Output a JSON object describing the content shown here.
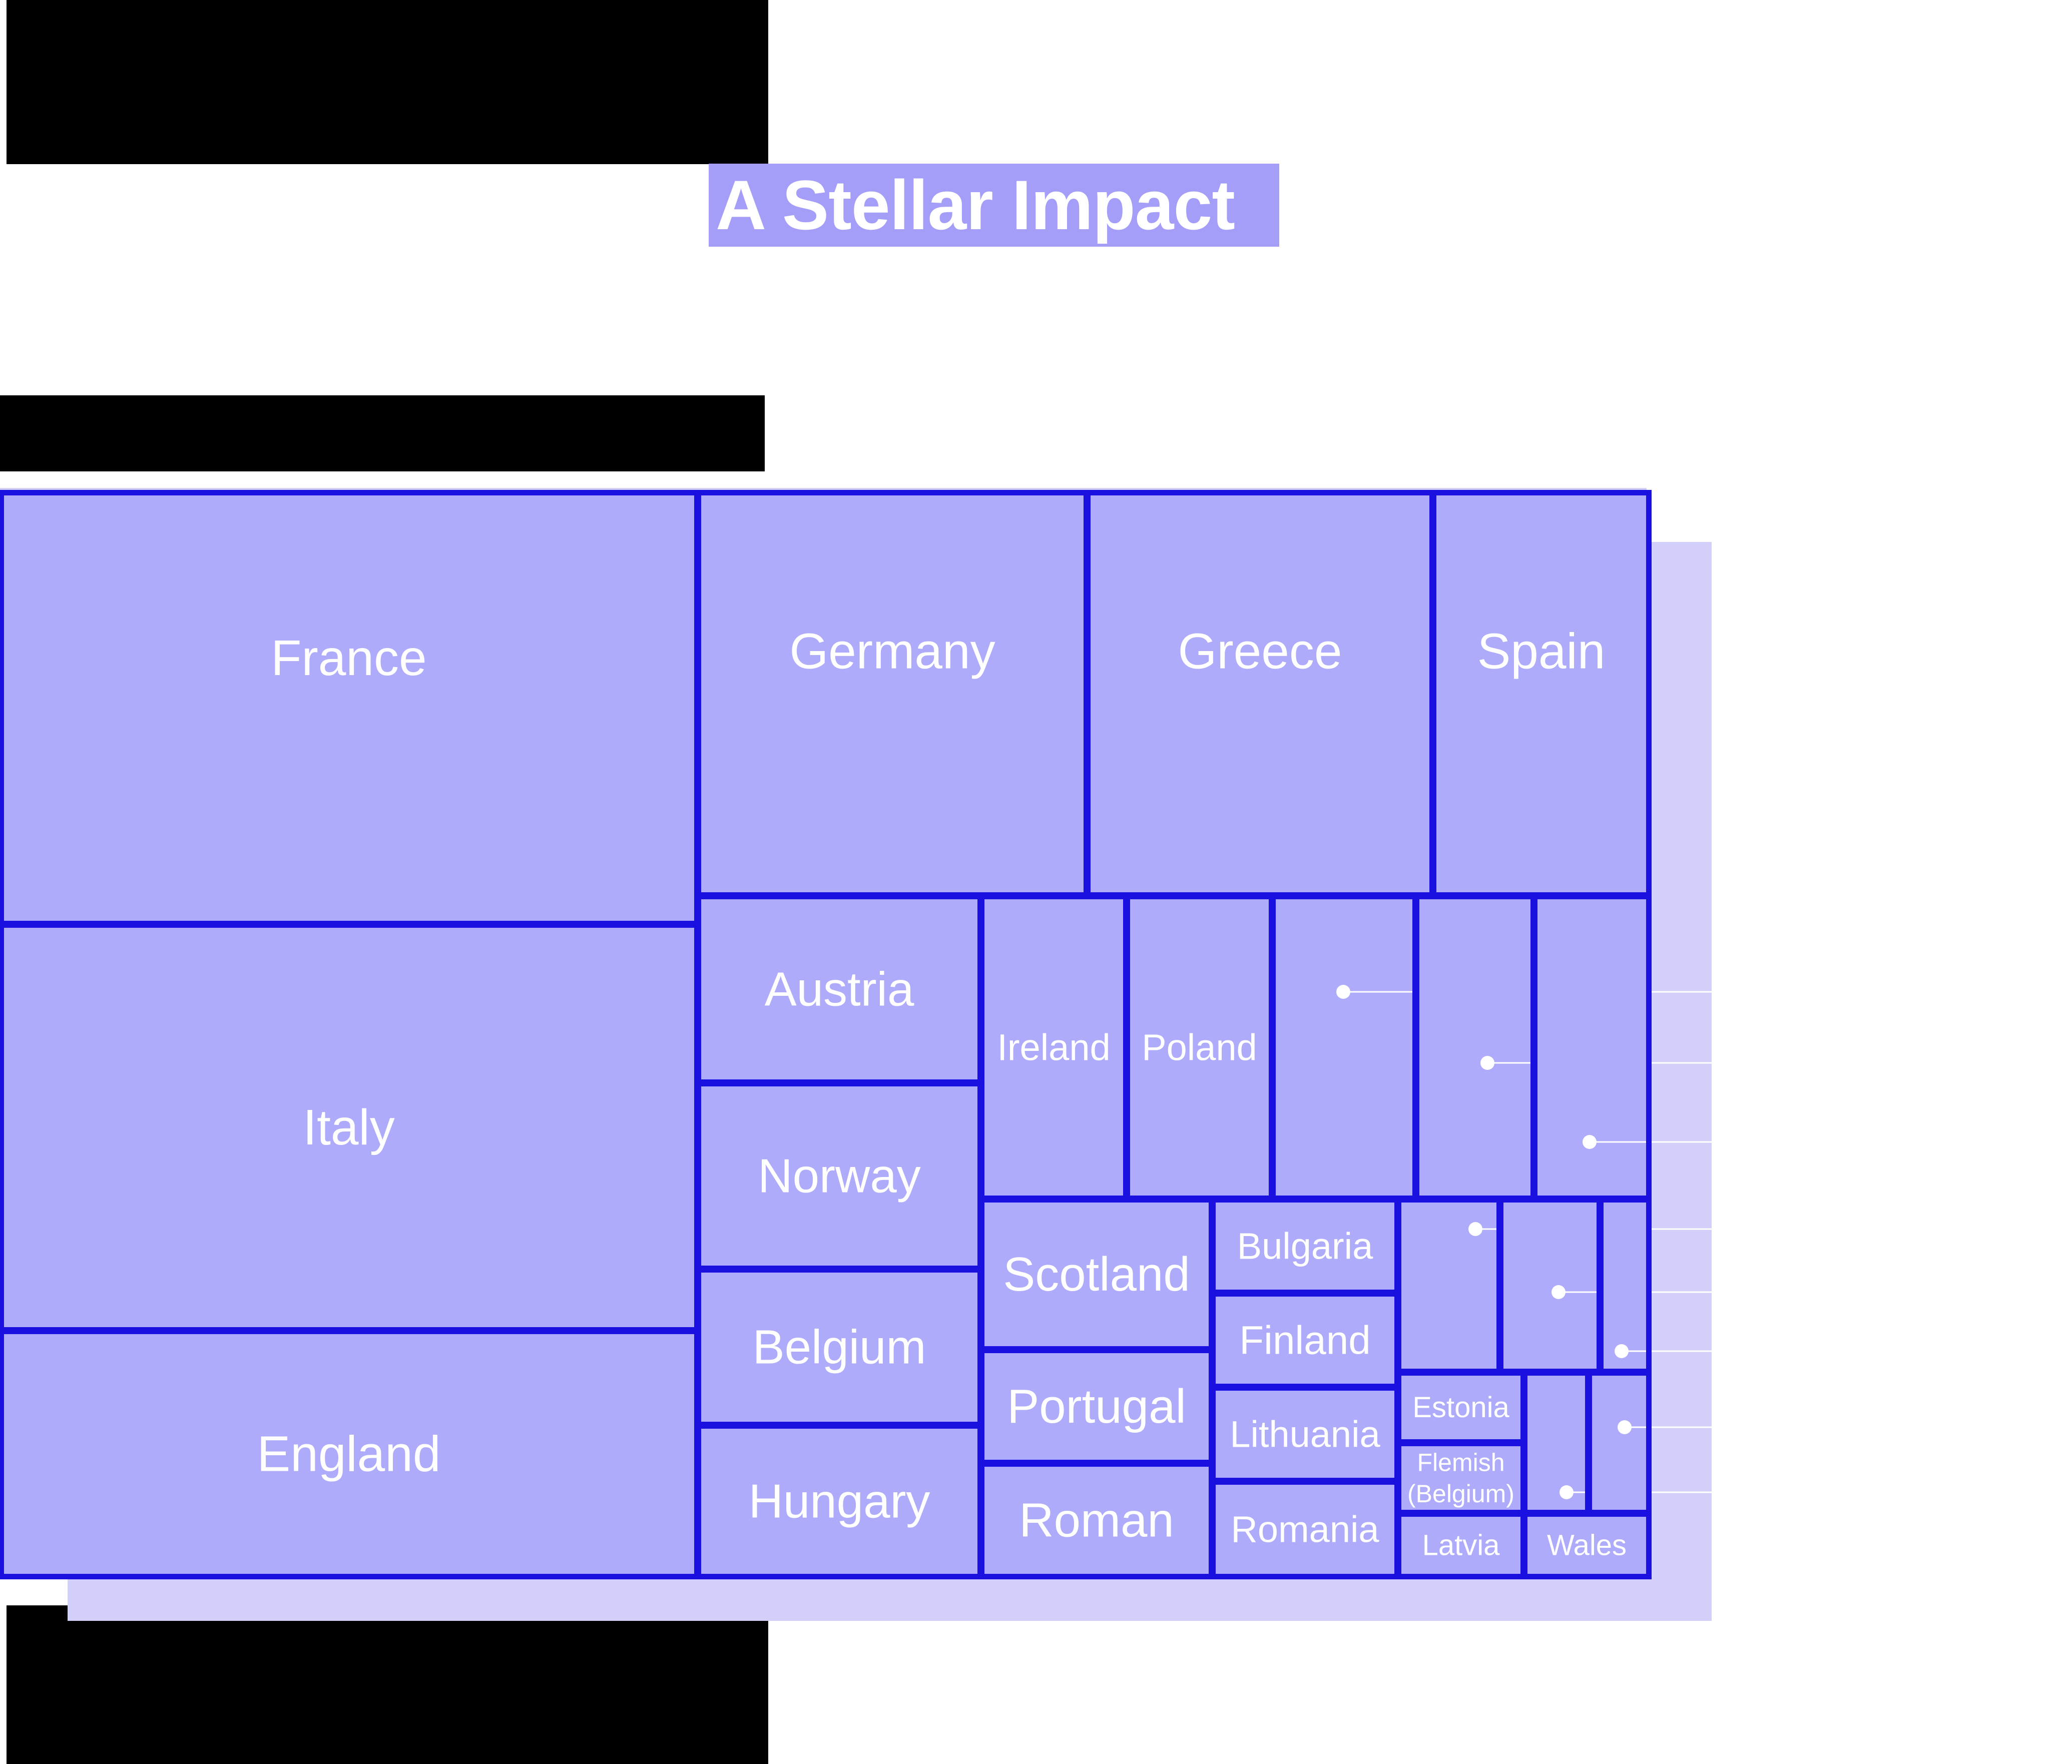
{
  "title": "A Stellar Impact",
  "colors": {
    "tile_fill": "#afabfb",
    "frame_fill": "#d2d0fb",
    "border": "#1a10e0",
    "title_bg": "#a49ef9",
    "text": "#ffffff",
    "redaction": "#000000"
  },
  "chart_data": {
    "type": "treemap",
    "items": [
      {
        "label": "France"
      },
      {
        "label": "Italy"
      },
      {
        "label": "England"
      },
      {
        "label": "Germany"
      },
      {
        "label": "Greece"
      },
      {
        "label": "Spain"
      },
      {
        "label": "Austria"
      },
      {
        "label": "Norway"
      },
      {
        "label": "Belgium"
      },
      {
        "label": "Hungary"
      },
      {
        "label": "Ireland"
      },
      {
        "label": "Poland"
      },
      {
        "label": "Scotland"
      },
      {
        "label": "Portugal"
      },
      {
        "label": "Roman"
      },
      {
        "label": "Bulgaria"
      },
      {
        "label": "Finland"
      },
      {
        "label": "Lithuania"
      },
      {
        "label": "Romania"
      },
      {
        "label": "Estonia"
      },
      {
        "label": "Flemish (Belgium)"
      },
      {
        "label": "Latvia"
      },
      {
        "label": "Wales"
      },
      {
        "label": ""
      },
      {
        "label": ""
      },
      {
        "label": ""
      },
      {
        "label": ""
      },
      {
        "label": ""
      },
      {
        "label": ""
      },
      {
        "label": ""
      },
      {
        "label": ""
      }
    ]
  }
}
